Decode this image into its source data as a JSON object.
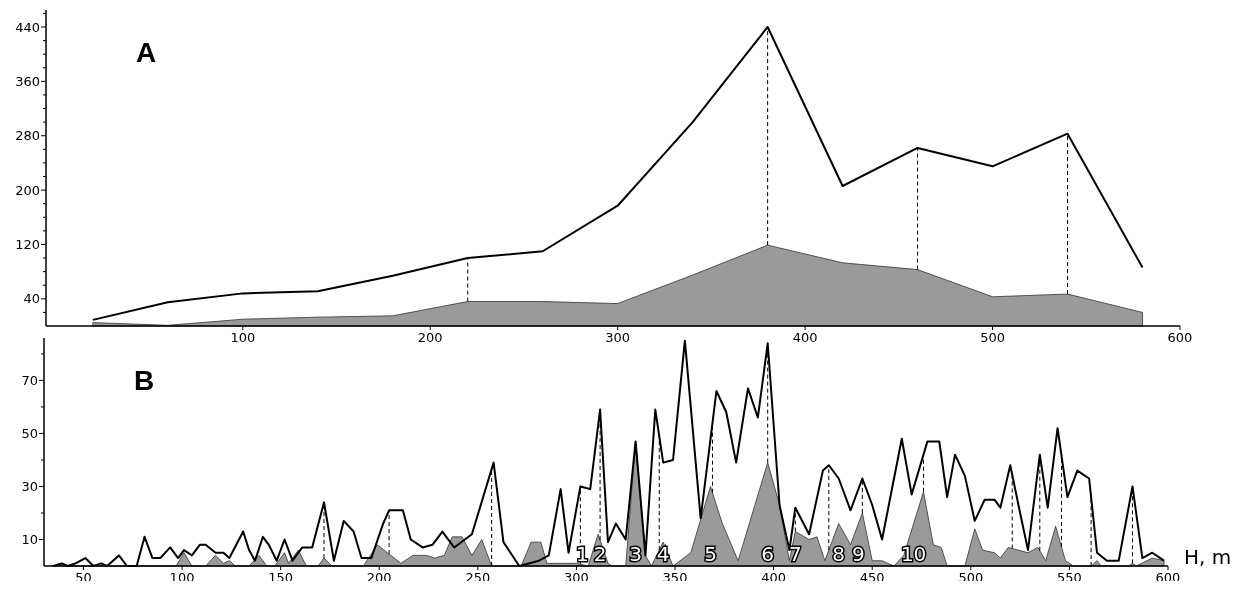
{
  "chart_data": [
    {
      "type": "area",
      "title": "A",
      "x": [
        20,
        60,
        100,
        140,
        180,
        220,
        260,
        300,
        340,
        380,
        420,
        460,
        500,
        540,
        580
      ],
      "xlim": [
        -5,
        600
      ],
      "xticks": [
        100,
        200,
        300,
        400,
        500,
        600
      ],
      "ylim": [
        0,
        465
      ],
      "yticks": [
        {
          "value": 20,
          "label": null
        },
        40,
        {
          "value": 60,
          "label": null
        },
        {
          "value": 80,
          "label": null
        },
        {
          "value": 100,
          "label": null
        },
        120,
        {
          "value": 140,
          "label": null
        },
        {
          "value": 160,
          "label": null
        },
        {
          "value": 180,
          "label": null
        },
        200,
        {
          "value": 220,
          "label": null
        },
        {
          "value": 240,
          "label": null
        },
        {
          "value": 260,
          "label": null
        },
        280,
        {
          "value": 300,
          "label": null
        },
        {
          "value": 320,
          "label": null
        },
        {
          "value": 340,
          "label": null
        },
        360,
        {
          "value": 380,
          "label": null
        },
        {
          "value": 400,
          "label": null
        },
        {
          "value": 420,
          "label": null
        },
        440,
        {
          "value": 460,
          "label": null
        }
      ],
      "series": [
        {
          "type": "line",
          "color": "#000000",
          "values": [
            9,
            35,
            48,
            51,
            74,
            100,
            110,
            177,
            300,
            440,
            206,
            262,
            235,
            283,
            86
          ]
        },
        {
          "type": "area",
          "color": "#9a9a9a",
          "values": [
            5,
            1,
            10,
            13,
            15,
            36,
            36,
            33,
            75,
            119,
            93,
            83,
            43,
            47,
            20
          ]
        }
      ],
      "ref_lines": [
        {
          "axis": "x",
          "value": 220,
          "line_style": "dashed"
        },
        {
          "axis": "x",
          "value": 380,
          "line_style": "dashed"
        },
        {
          "axis": "x",
          "value": 460,
          "line_style": "dashed"
        },
        {
          "axis": "x",
          "value": 540,
          "line_style": "dashed"
        }
      ],
      "grid": false,
      "marker": "none"
    },
    {
      "type": "area",
      "title": "B",
      "xlabel": "H, m",
      "xlim": [
        30,
        600
      ],
      "xticks": [
        50,
        100,
        150,
        200,
        250,
        300,
        350,
        400,
        450,
        500,
        550,
        600
      ],
      "ylim": [
        0,
        86
      ],
      "yticks": [
        10,
        {
          "value": 20,
          "label": null
        },
        30,
        {
          "value": 40,
          "label": null
        },
        50,
        {
          "value": 60,
          "label": null
        },
        70,
        {
          "value": 80,
          "label": null
        }
      ],
      "series": [
        {
          "type": "line",
          "color": "#000000",
          "x": [
            35,
            39,
            42,
            46,
            51,
            55,
            59,
            62,
            68,
            72,
            77,
            81,
            85,
            89,
            94,
            98,
            101,
            105,
            109,
            112,
            117,
            121,
            124,
            131,
            134,
            137,
            141,
            144,
            148,
            152,
            156,
            161,
            166,
            172,
            177,
            182,
            187,
            191,
            196,
            202,
            205,
            212,
            216,
            222,
            227,
            232,
            238,
            247,
            258,
            263,
            271,
            281,
            286,
            292,
            296,
            302,
            307,
            312,
            316,
            320,
            325,
            330,
            335,
            340,
            344,
            349,
            355,
            363,
            371,
            376,
            381,
            387,
            392,
            397,
            403,
            408,
            411,
            418,
            425,
            428,
            433,
            439,
            445,
            450,
            455,
            465,
            470,
            478,
            484,
            488,
            492,
            497,
            502,
            507,
            512,
            515,
            520,
            525,
            529,
            535,
            539,
            544,
            549,
            554,
            560,
            564,
            569,
            575,
            582,
            587,
            592,
            598
          ],
          "values": [
            0,
            1,
            0,
            1,
            3,
            0,
            1,
            0,
            4,
            0,
            0,
            11,
            3,
            3,
            7,
            3,
            6,
            4,
            8,
            8,
            5,
            5,
            3,
            13,
            6,
            2,
            11,
            8,
            2,
            10,
            2,
            7,
            7,
            24,
            2,
            17,
            13,
            3,
            3,
            16,
            21,
            21,
            10,
            7,
            8,
            13,
            7,
            12,
            39,
            9,
            0,
            2,
            4,
            29,
            5,
            30,
            29,
            59,
            9,
            16,
            10,
            47,
            4,
            59,
            39,
            40,
            85,
            18,
            66,
            58,
            39,
            67,
            56,
            84,
            23,
            6,
            22,
            12,
            36,
            38,
            33,
            21,
            33,
            23,
            10,
            48,
            27,
            47,
            47,
            26,
            42,
            34,
            17,
            25,
            25,
            22,
            38,
            20,
            6,
            42,
            22,
            52,
            26,
            36,
            33,
            5,
            2,
            2,
            30,
            3,
            5,
            2
          ]
        },
        {
          "type": "area",
          "color": "#9a9a9a",
          "x": [
            34,
            38,
            42,
            97,
            101,
            105,
            112,
            117,
            121,
            124,
            127,
            134,
            139,
            143,
            147,
            152,
            154,
            159,
            163,
            169,
            172,
            176,
            192,
            199,
            211,
            217,
            224,
            228,
            233,
            237,
            242,
            247,
            252,
            257,
            272,
            277,
            282,
            285,
            300,
            306,
            311,
            316,
            318,
            325,
            330,
            335,
            338,
            344,
            349,
            358,
            368,
            374,
            382,
            397,
            403,
            408,
            411,
            418,
            422,
            426,
            433,
            439,
            445,
            450,
            455,
            461,
            466,
            476,
            481,
            485,
            488,
            497,
            502,
            506,
            512,
            515,
            519,
            524,
            529,
            534,
            538,
            543,
            548,
            552,
            561,
            564,
            566,
            580,
            582,
            584,
            592,
            598
          ],
          "values": [
            0,
            1,
            0,
            0,
            5,
            0,
            0,
            4,
            1,
            2,
            0,
            0,
            4,
            0,
            0,
            5,
            1,
            6,
            0,
            0,
            3,
            0,
            0,
            8,
            1,
            4,
            4,
            3,
            4,
            11,
            11,
            4,
            10,
            0,
            0,
            9,
            9,
            1,
            1,
            0,
            12,
            1,
            0,
            0,
            47,
            4,
            0,
            9,
            0,
            5,
            30,
            16,
            2,
            39,
            23,
            2,
            13,
            10,
            11,
            2,
            16,
            8,
            20,
            2,
            2,
            0,
            4,
            28,
            8,
            7,
            0,
            0,
            14,
            6,
            5,
            3,
            7,
            6,
            5,
            7,
            2,
            15,
            2,
            0,
            0,
            2,
            0,
            0,
            1,
            0,
            3,
            2
          ]
        }
      ],
      "ref_lines": [
        {
          "axis": "x",
          "value": 172,
          "line_style": "dashed"
        },
        {
          "axis": "x",
          "value": 205,
          "line_style": "dashed"
        },
        {
          "axis": "x",
          "value": 257,
          "line_style": "dashed"
        },
        {
          "axis": "x",
          "value": 302,
          "line_style": "dashed"
        },
        {
          "axis": "x",
          "value": 312,
          "line_style": "dashed"
        },
        {
          "axis": "x",
          "value": 342,
          "line_style": "dashed"
        },
        {
          "axis": "x",
          "value": 369,
          "line_style": "dashed"
        },
        {
          "axis": "x",
          "value": 397,
          "line_style": "dashed"
        },
        {
          "axis": "x",
          "value": 411,
          "line_style": "dashed"
        },
        {
          "axis": "x",
          "value": 428,
          "line_style": "dashed"
        },
        {
          "axis": "x",
          "value": 445,
          "line_style": "dashed"
        },
        {
          "axis": "x",
          "value": 476,
          "line_style": "dashed"
        },
        {
          "axis": "x",
          "value": 521,
          "line_style": "dashed"
        },
        {
          "axis": "x",
          "value": 535,
          "line_style": "dashed"
        },
        {
          "axis": "x",
          "value": 546,
          "line_style": "dashed"
        },
        {
          "axis": "x",
          "value": 561,
          "line_style": "dashed"
        },
        {
          "axis": "x",
          "value": 582,
          "line_style": "dashed"
        }
      ],
      "annotations": [
        {
          "text": "1",
          "x": 303,
          "y": 2
        },
        {
          "text": "2",
          "x": 312,
          "y": 2
        },
        {
          "text": "3",
          "x": 330,
          "y": 2
        },
        {
          "text": "4",
          "x": 344,
          "y": 2
        },
        {
          "text": "5",
          "x": 368,
          "y": 2
        },
        {
          "text": "6",
          "x": 397,
          "y": 2
        },
        {
          "text": "7",
          "x": 411,
          "y": 2
        },
        {
          "text": "8",
          "x": 433,
          "y": 2
        },
        {
          "text": "9",
          "x": 443,
          "y": 2
        },
        {
          "text": "10",
          "x": 471,
          "y": 2
        }
      ],
      "grid": false,
      "marker": "none"
    }
  ]
}
